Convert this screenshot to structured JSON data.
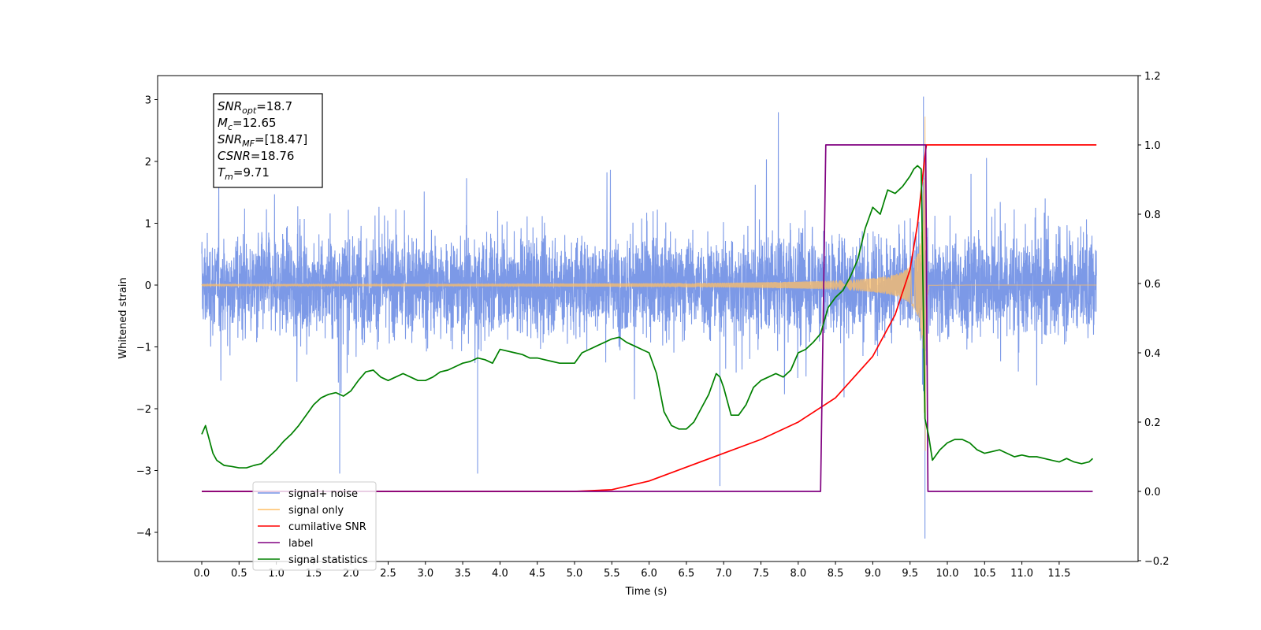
{
  "chart_data": {
    "type": "line",
    "title": "",
    "xlabel": "Time (s)",
    "ylabel": "Whitened strain",
    "y2label": "",
    "xlim": [
      -0.6,
      12.6
    ],
    "ylim": [
      -4.45,
      3.4
    ],
    "y2lim": [
      -0.2,
      1.2
    ],
    "x_ticks": [
      "0.0",
      "0.5",
      "1.0",
      "1.5",
      "2.0",
      "2.5",
      "3.0",
      "3.5",
      "4.0",
      "4.5",
      "5.0",
      "5.5",
      "6.0",
      "6.5",
      "7.0",
      "7.5",
      "8.0",
      "8.5",
      "9.0",
      "9.5",
      "10.0",
      "10.5",
      "11.0",
      "11.5"
    ],
    "y_ticks": [
      "3",
      "2",
      "1",
      "0",
      "−1",
      "−2",
      "−3",
      "−4"
    ],
    "y2_ticks": [
      "1.2",
      "1.0",
      "0.8",
      "0.6",
      "0.4",
      "0.2",
      "0.0",
      "−0.2"
    ],
    "grid": false,
    "legend_position": "lower-left",
    "annotation": {
      "lines": [
        {
          "name": "SNR",
          "sub": "opt",
          "value": "=18.7"
        },
        {
          "name": "M",
          "sub": "c",
          "value": "=12.65"
        },
        {
          "name": "SNR",
          "sub": "MF",
          "value": "=[18.47]"
        },
        {
          "name": "CSNR",
          "sub": "",
          "value": "=18.76"
        },
        {
          "name": "T",
          "sub": "m",
          "value": "=9.71"
        }
      ]
    },
    "legend": [
      {
        "label": "signal+ noise",
        "color": "#7593e6"
      },
      {
        "label": "signal only",
        "color": "#ffbf66"
      },
      {
        "label": "cumilative SNR",
        "color": "#ff0000"
      },
      {
        "label": "label",
        "color": "#800080"
      },
      {
        "label": "signal statistics",
        "color": "#008000"
      }
    ],
    "series": [
      {
        "name": "signal+ noise",
        "axis": "left",
        "color": "#7593e6",
        "style": "dense_noise",
        "x_range": [
          0.0,
          12.0
        ],
        "band": [
          -1.5,
          1.9
        ],
        "extremes": [
          [
            9.68,
            3.05
          ],
          [
            9.7,
            -4.1
          ],
          [
            1.85,
            -3.05
          ],
          [
            3.7,
            -3.05
          ],
          [
            6.95,
            -3.25
          ]
        ]
      },
      {
        "name": "signal only",
        "axis": "left",
        "color": "#ffbf66",
        "style": "chirp",
        "x_range": [
          0.0,
          12.0
        ],
        "merger_time": 9.71,
        "peak_amplitude": 2.75
      },
      {
        "name": "cumilative SNR",
        "axis": "right",
        "color": "#ff0000",
        "x": [
          0.0,
          4.5,
          5.0,
          5.5,
          6.0,
          6.5,
          7.0,
          7.5,
          8.0,
          8.5,
          9.0,
          9.3,
          9.5,
          9.6,
          9.7,
          9.72,
          10.0,
          11.0,
          12.0
        ],
        "y": [
          0.0,
          0.0,
          0.0,
          0.005,
          0.03,
          0.07,
          0.11,
          0.15,
          0.2,
          0.27,
          0.39,
          0.51,
          0.64,
          0.77,
          0.97,
          1.0,
          1.0,
          1.0,
          1.0
        ]
      },
      {
        "name": "label",
        "axis": "right",
        "color": "#800080",
        "x": [
          0.0,
          8.3,
          8.37,
          9.71,
          9.74,
          11.95
        ],
        "y": [
          0.0,
          0.0,
          1.0,
          1.0,
          0.0,
          0.0
        ]
      },
      {
        "name": "signal statistics",
        "axis": "right",
        "color": "#008000",
        "x": [
          0.0,
          0.05,
          0.1,
          0.15,
          0.2,
          0.3,
          0.4,
          0.5,
          0.6,
          0.7,
          0.8,
          0.9,
          1.0,
          1.1,
          1.2,
          1.3,
          1.4,
          1.5,
          1.6,
          1.7,
          1.8,
          1.9,
          2.0,
          2.1,
          2.2,
          2.3,
          2.4,
          2.5,
          2.6,
          2.7,
          2.8,
          2.9,
          3.0,
          3.1,
          3.2,
          3.3,
          3.4,
          3.5,
          3.6,
          3.7,
          3.8,
          3.9,
          4.0,
          4.1,
          4.2,
          4.3,
          4.4,
          4.5,
          4.6,
          4.7,
          4.8,
          4.9,
          5.0,
          5.1,
          5.2,
          5.3,
          5.4,
          5.5,
          5.6,
          5.7,
          5.8,
          5.9,
          6.0,
          6.1,
          6.2,
          6.3,
          6.4,
          6.5,
          6.6,
          6.7,
          6.8,
          6.9,
          6.95,
          7.0,
          7.1,
          7.2,
          7.3,
          7.4,
          7.5,
          7.6,
          7.7,
          7.8,
          7.9,
          8.0,
          8.1,
          8.2,
          8.3,
          8.4,
          8.5,
          8.6,
          8.7,
          8.8,
          8.9,
          9.0,
          9.1,
          9.2,
          9.3,
          9.4,
          9.5,
          9.55,
          9.6,
          9.65,
          9.7,
          9.75,
          9.8,
          9.9,
          10.0,
          10.1,
          10.2,
          10.3,
          10.4,
          10.5,
          10.6,
          10.7,
          10.8,
          10.9,
          11.0,
          11.1,
          11.2,
          11.3,
          11.4,
          11.5,
          11.6,
          11.7,
          11.8,
          11.9,
          11.95
        ],
        "y": [
          0.165,
          0.19,
          0.15,
          0.11,
          0.09,
          0.075,
          0.072,
          0.068,
          0.068,
          0.075,
          0.08,
          0.1,
          0.12,
          0.145,
          0.165,
          0.19,
          0.22,
          0.25,
          0.27,
          0.28,
          0.285,
          0.275,
          0.29,
          0.32,
          0.345,
          0.35,
          0.33,
          0.32,
          0.33,
          0.34,
          0.33,
          0.32,
          0.32,
          0.33,
          0.345,
          0.35,
          0.36,
          0.37,
          0.375,
          0.385,
          0.38,
          0.37,
          0.41,
          0.405,
          0.4,
          0.395,
          0.385,
          0.385,
          0.38,
          0.375,
          0.37,
          0.37,
          0.37,
          0.4,
          0.41,
          0.42,
          0.43,
          0.44,
          0.445,
          0.43,
          0.42,
          0.41,
          0.4,
          0.34,
          0.23,
          0.19,
          0.18,
          0.18,
          0.2,
          0.24,
          0.28,
          0.34,
          0.33,
          0.3,
          0.22,
          0.22,
          0.25,
          0.3,
          0.32,
          0.33,
          0.34,
          0.33,
          0.35,
          0.4,
          0.41,
          0.43,
          0.455,
          0.53,
          0.56,
          0.58,
          0.62,
          0.67,
          0.76,
          0.82,
          0.8,
          0.87,
          0.86,
          0.88,
          0.91,
          0.93,
          0.94,
          0.93,
          0.21,
          0.16,
          0.09,
          0.12,
          0.14,
          0.15,
          0.15,
          0.14,
          0.12,
          0.11,
          0.115,
          0.12,
          0.11,
          0.1,
          0.105,
          0.1,
          0.1,
          0.095,
          0.09,
          0.085,
          0.095,
          0.085,
          0.08,
          0.085,
          0.095
        ]
      }
    ]
  }
}
